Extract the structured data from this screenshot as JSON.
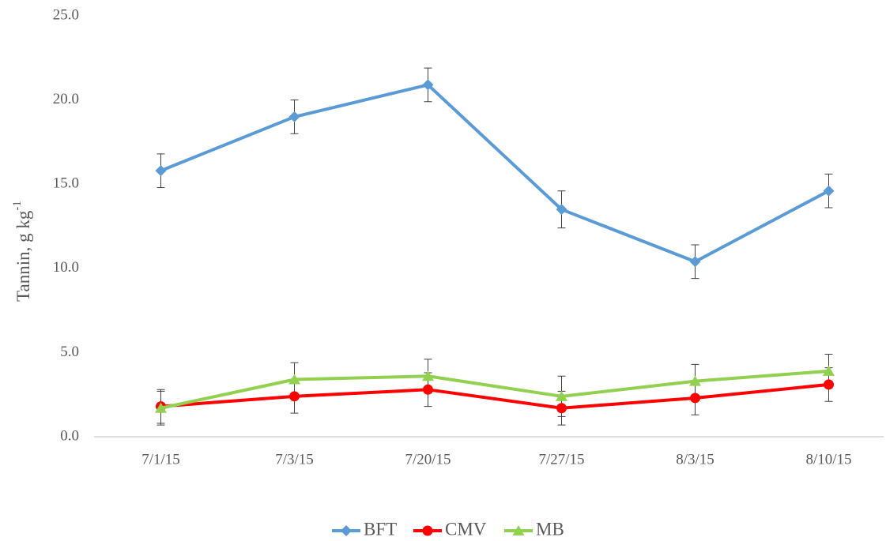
{
  "chart_data": {
    "type": "line",
    "y_label": "Tannin, g kg",
    "y_label_sup": "-1",
    "categories": [
      "7/1/15",
      "7/3/15",
      "7/20/15",
      "7/27/15",
      "8/3/15",
      "8/10/15"
    ],
    "series": [
      {
        "name": "BFT",
        "color": "#5b9bd5",
        "marker": "diamond",
        "values": [
          15.8,
          19.0,
          20.9,
          13.5,
          10.4,
          14.6
        ],
        "errors": [
          1.0,
          1.0,
          1.0,
          1.1,
          1.0,
          1.0
        ]
      },
      {
        "name": "CMV",
        "color": "#ff0000",
        "marker": "circle",
        "values": [
          1.8,
          2.4,
          2.8,
          1.7,
          2.3,
          3.1
        ],
        "errors": [
          1.0,
          1.0,
          1.0,
          1.0,
          1.0,
          1.0
        ]
      },
      {
        "name": "MB",
        "color": "#92d050",
        "marker": "triangle",
        "values": [
          1.7,
          3.4,
          3.6,
          2.4,
          3.3,
          3.9
        ],
        "errors": [
          1.0,
          1.0,
          1.0,
          1.2,
          1.0,
          1.0
        ]
      }
    ],
    "ylim": [
      0,
      25
    ],
    "yticks": [
      {
        "value": 0,
        "label": "0.0"
      },
      {
        "value": 5,
        "label": "5.0"
      },
      {
        "value": 10,
        "label": "10.0"
      },
      {
        "value": 15,
        "label": "15.0"
      },
      {
        "value": 20,
        "label": "20.0"
      },
      {
        "value": 25,
        "label": "25.0"
      }
    ],
    "grid": false,
    "legend": "bottom"
  }
}
